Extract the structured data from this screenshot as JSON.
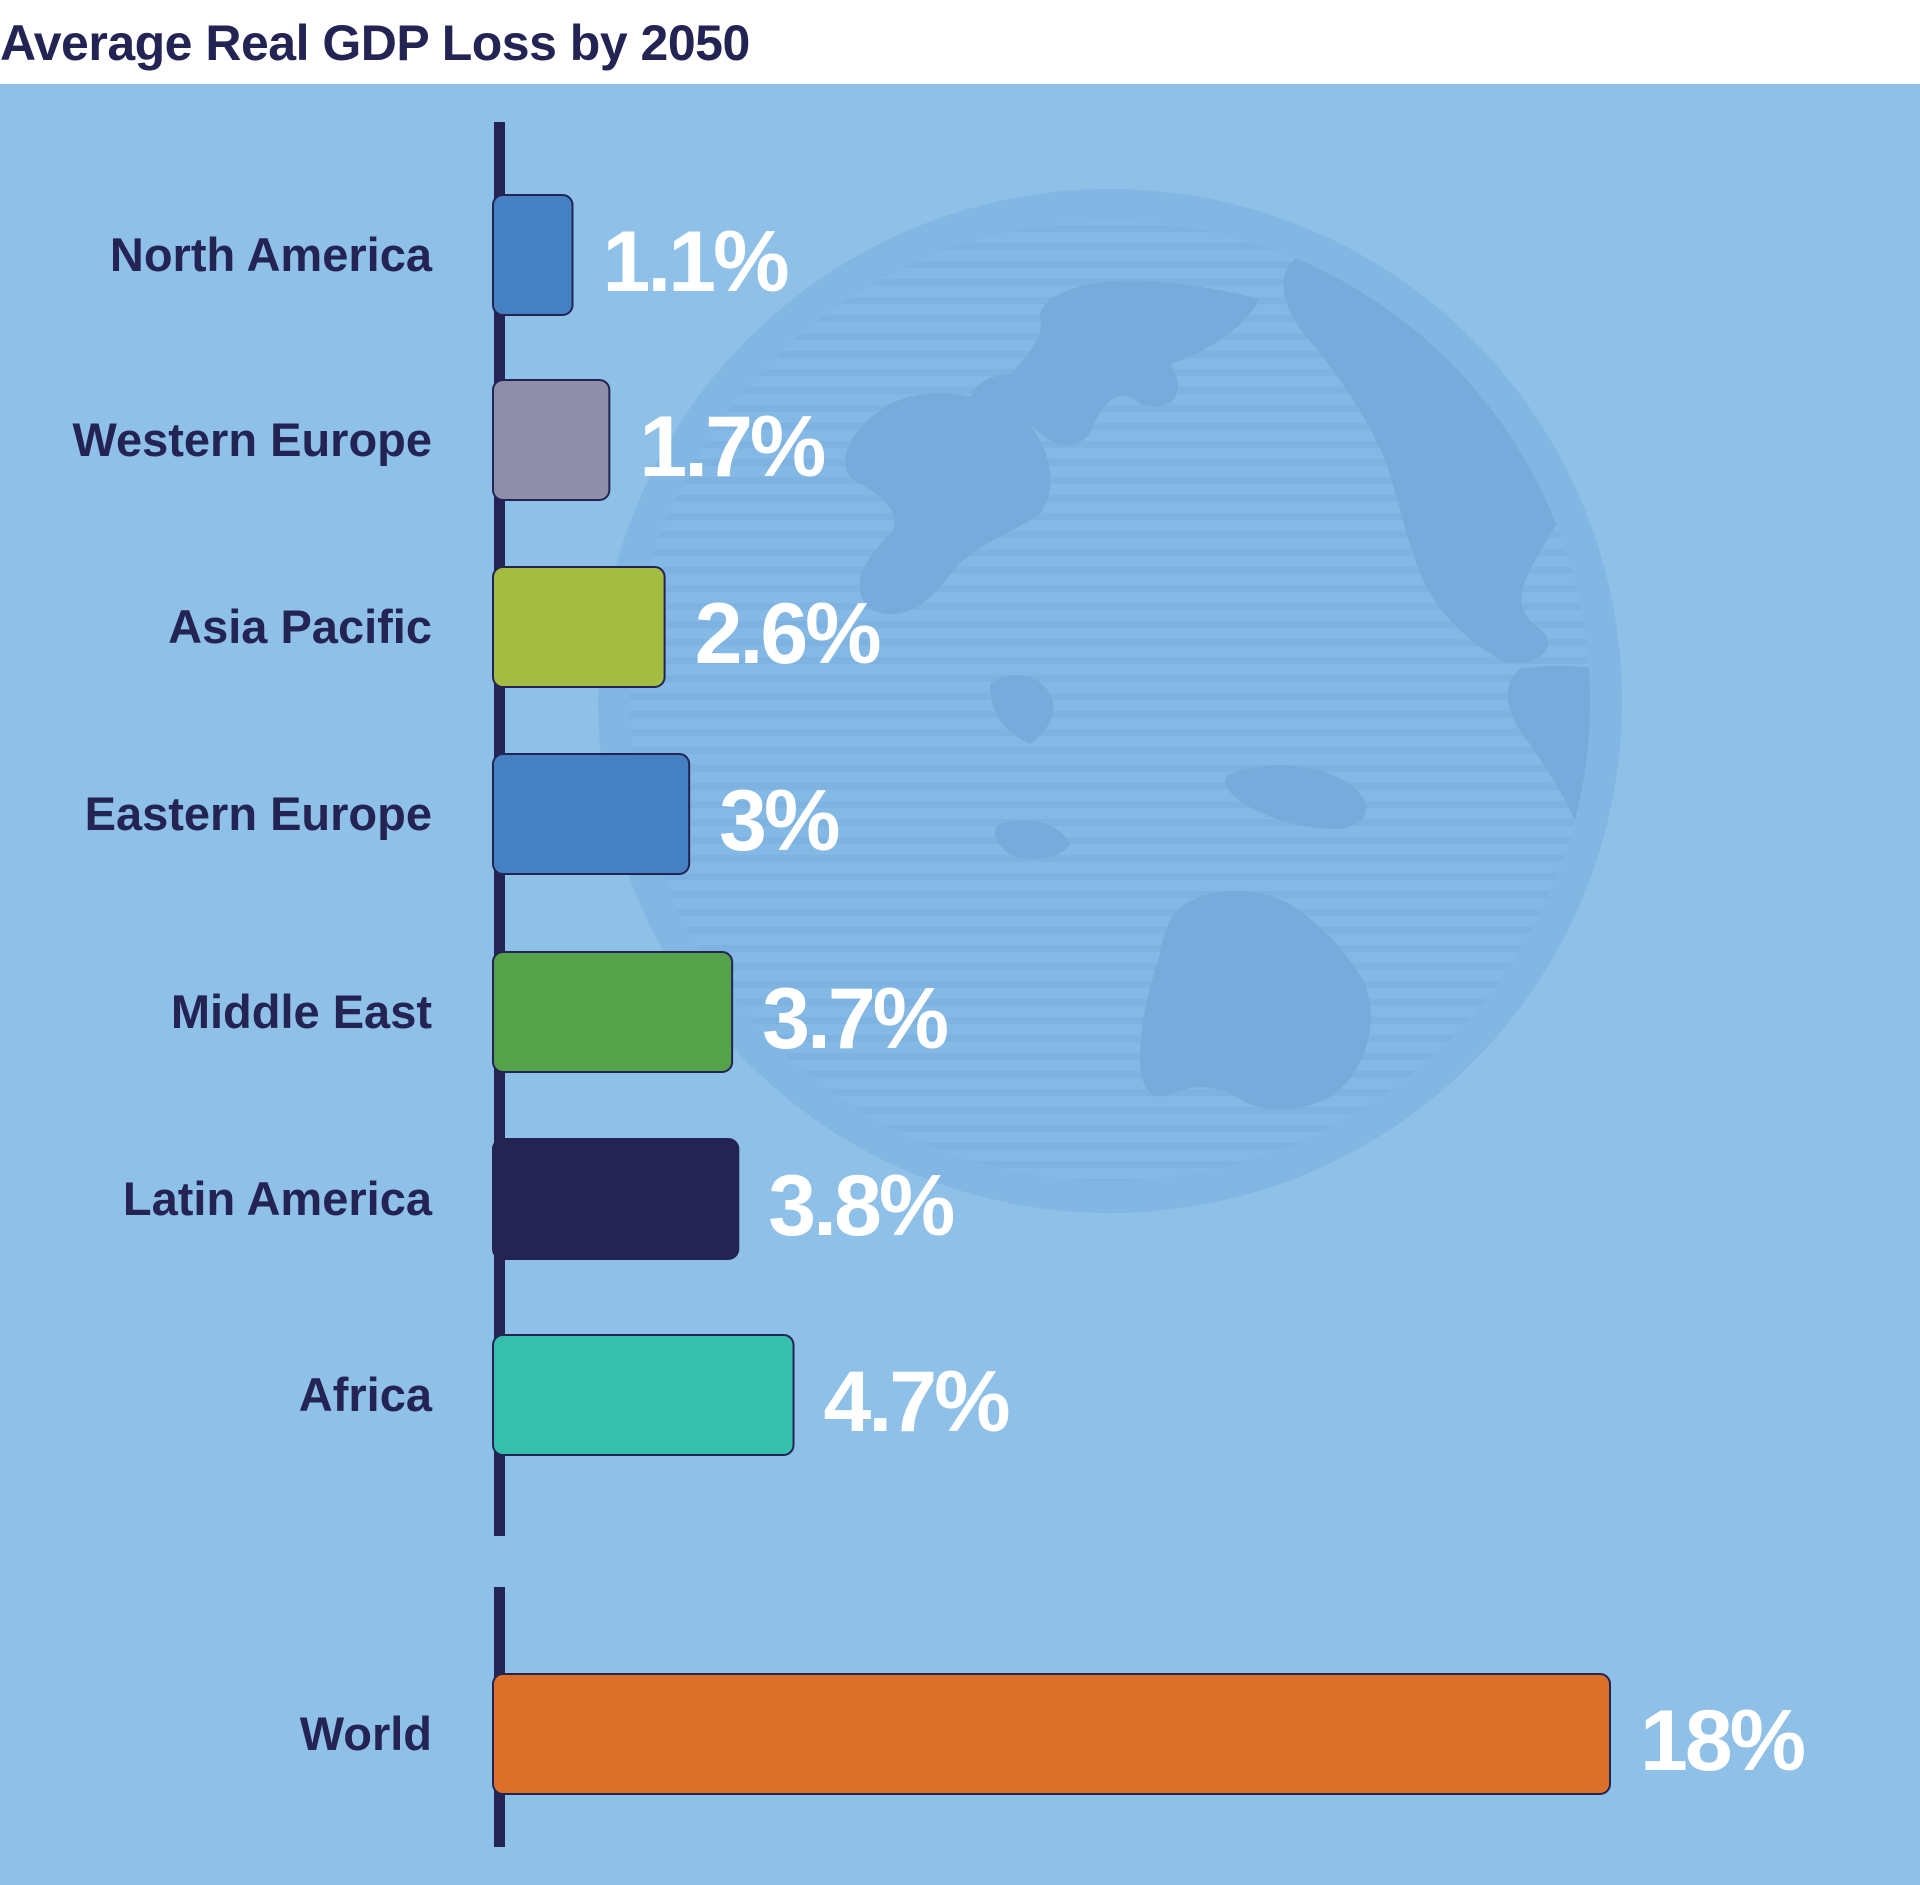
{
  "title": "Average Real GDP Loss by 2050",
  "colors": {
    "background": "#8ec0e8",
    "globe": "#78aadb",
    "axis": "#232454",
    "label_text": "#232454",
    "value_text": "#ffffff"
  },
  "decoration": {
    "icon": "globe-icon"
  },
  "chart_data": {
    "type": "bar",
    "orientation": "horizontal",
    "value_unit": "%",
    "title": "Average Real GDP Loss by 2050",
    "categories": [
      "North America",
      "Western Europe",
      "Asia Pacific",
      "Eastern Europe",
      "Middle East",
      "Latin America",
      "Africa",
      "World"
    ],
    "values": [
      1.1,
      1.7,
      2.6,
      3,
      3.7,
      3.8,
      4.7,
      18
    ],
    "value_labels": [
      "1.1%",
      "1.7%",
      "2.6%",
      "3%",
      "3.7%",
      "3.8%",
      "4.7%",
      "18%"
    ],
    "bar_colors": [
      "#4480c2",
      "#8e8ea9",
      "#a5bc42",
      "#4480c2",
      "#55a24a",
      "#232454",
      "#37bfae",
      "#dc702b"
    ],
    "groups": [
      {
        "name": "regions",
        "indices": [
          0,
          1,
          2,
          3,
          4,
          5,
          6
        ]
      },
      {
        "name": "total",
        "indices": [
          7
        ]
      }
    ],
    "xlim": [
      0,
      18
    ],
    "grid": false,
    "legend": "none"
  }
}
